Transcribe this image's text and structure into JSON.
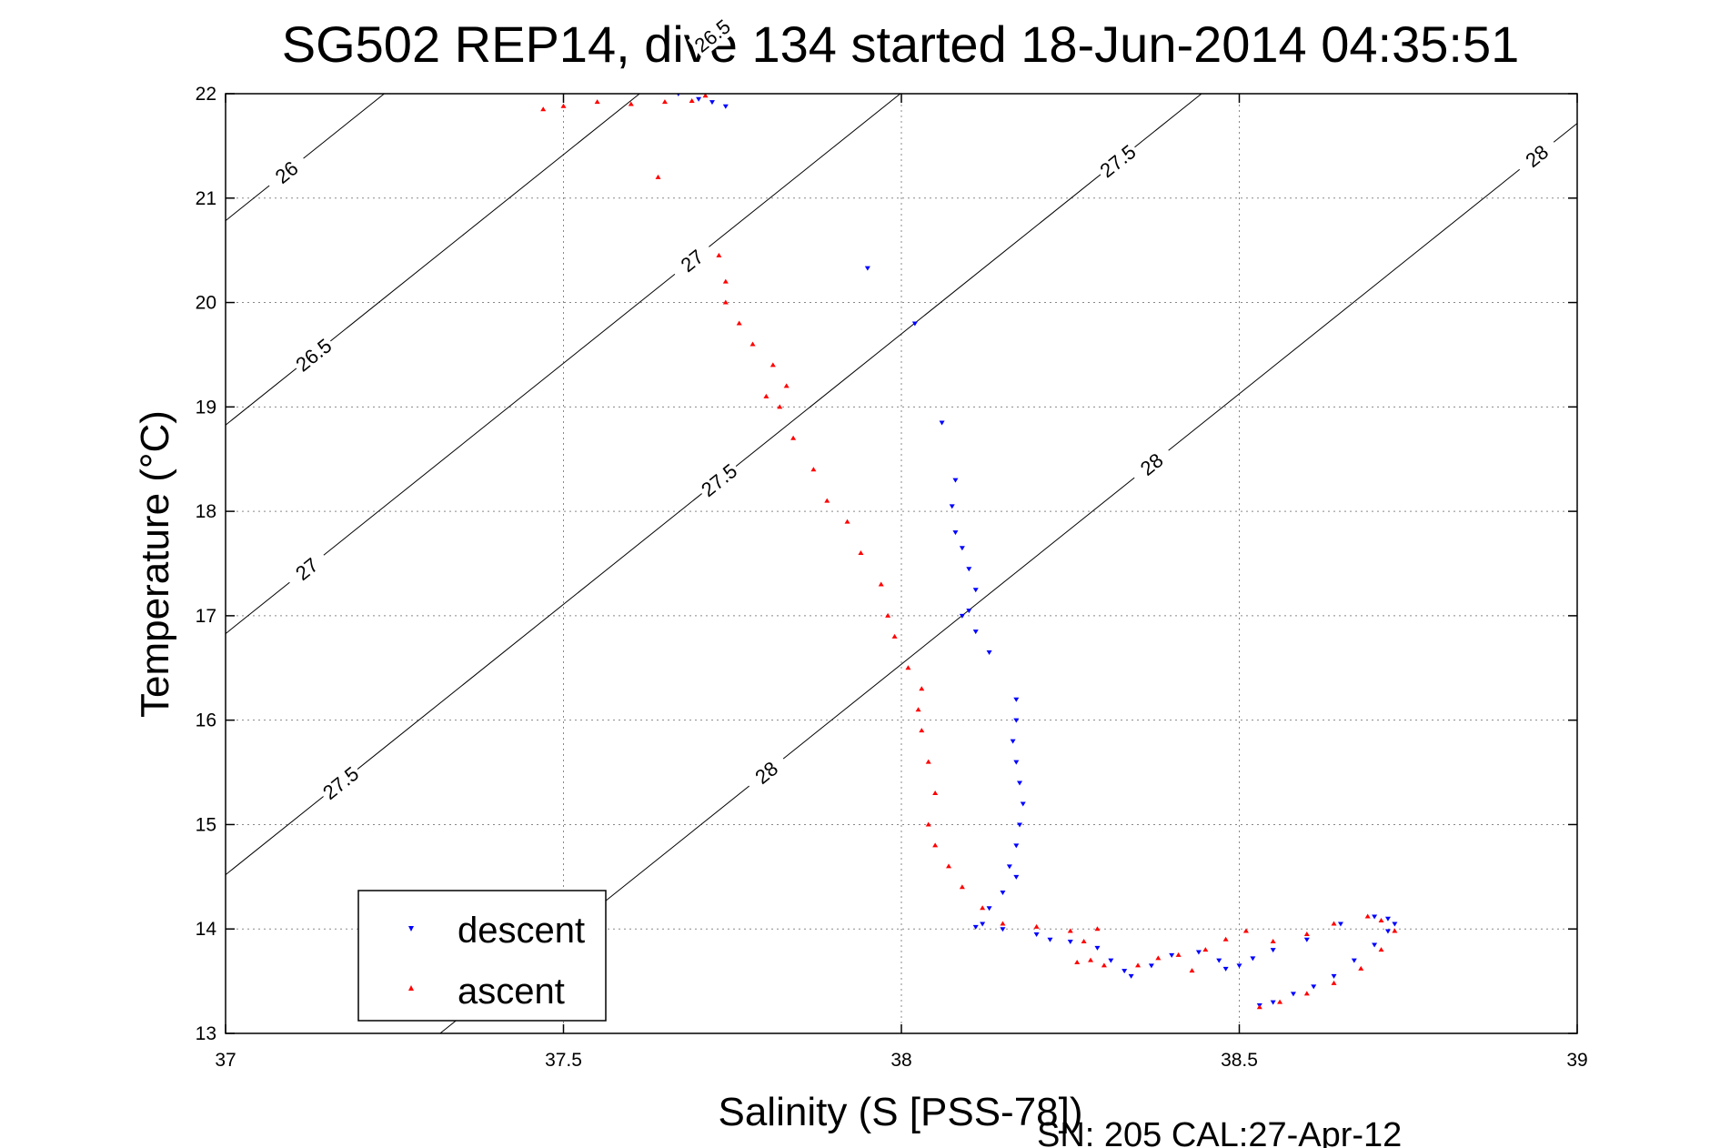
{
  "chart_data": {
    "type": "scatter",
    "title": "SG502 REP14, dive 134 started 18-Jun-2014 04:35:51",
    "xlabel": "Salinity (S [PSS-78])",
    "ylabel": "Temperature (°C)",
    "xlim": [
      37,
      39
    ],
    "ylim": [
      13,
      22
    ],
    "xticks": [
      "37",
      "37.5",
      "38",
      "38.5",
      "39"
    ],
    "yticks": [
      "13",
      "14",
      "15",
      "16",
      "17",
      "18",
      "19",
      "20",
      "21",
      "22"
    ],
    "grid": true,
    "legend_position": "bottom-left",
    "footer": "SN: 205  CAL:27-Apr-12",
    "density_contours": [
      {
        "level": "26",
        "label_points": [
          [
            37.09,
            21.25
          ]
        ]
      },
      {
        "level": "26.5",
        "label_points": [
          [
            37.13,
            19.5
          ],
          [
            37.72,
            21.15
          ]
        ]
      },
      {
        "level": "27",
        "label_points": [
          [
            37.12,
            17.45
          ],
          [
            37.69,
            19.28
          ],
          [
            38.28,
            21.0
          ]
        ]
      },
      {
        "level": "27.5",
        "label_points": [
          [
            37.17,
            15.4
          ],
          [
            37.73,
            17.4
          ],
          [
            38.32,
            19.2
          ],
          [
            38.91,
            20.8
          ]
        ]
      },
      {
        "level": "28",
        "label_points": [
          [
            37.8,
            15.5
          ],
          [
            38.37,
            17.35
          ],
          [
            38.94,
            19.0
          ]
        ]
      }
    ],
    "series": [
      {
        "name": "descent",
        "color": "#0000ff",
        "marker": "triangle-down",
        "points": [
          [
            37.67,
            22.0
          ],
          [
            37.7,
            21.95
          ],
          [
            37.72,
            21.92
          ],
          [
            37.74,
            21.88
          ],
          [
            37.95,
            20.33
          ],
          [
            38.02,
            19.8
          ],
          [
            38.06,
            18.85
          ],
          [
            38.08,
            18.3
          ],
          [
            38.075,
            18.05
          ],
          [
            38.08,
            17.8
          ],
          [
            38.09,
            17.65
          ],
          [
            38.1,
            17.45
          ],
          [
            38.11,
            17.25
          ],
          [
            38.1,
            17.05
          ],
          [
            38.09,
            17.0
          ],
          [
            38.11,
            16.85
          ],
          [
            38.13,
            16.65
          ],
          [
            38.17,
            16.2
          ],
          [
            38.17,
            16.0
          ],
          [
            38.165,
            15.8
          ],
          [
            38.17,
            15.6
          ],
          [
            38.175,
            15.4
          ],
          [
            38.18,
            15.2
          ],
          [
            38.175,
            15.0
          ],
          [
            38.17,
            14.8
          ],
          [
            38.16,
            14.6
          ],
          [
            38.17,
            14.5
          ],
          [
            38.15,
            14.35
          ],
          [
            38.13,
            14.2
          ],
          [
            38.12,
            14.05
          ],
          [
            38.11,
            14.02
          ],
          [
            38.15,
            14.0
          ],
          [
            38.2,
            13.95
          ],
          [
            38.22,
            13.9
          ],
          [
            38.25,
            13.88
          ],
          [
            38.29,
            13.82
          ],
          [
            38.31,
            13.7
          ],
          [
            38.33,
            13.6
          ],
          [
            38.34,
            13.55
          ],
          [
            38.37,
            13.65
          ],
          [
            38.4,
            13.75
          ],
          [
            38.44,
            13.78
          ],
          [
            38.47,
            13.7
          ],
          [
            38.48,
            13.62
          ],
          [
            38.5,
            13.65
          ],
          [
            38.52,
            13.72
          ],
          [
            38.55,
            13.8
          ],
          [
            38.6,
            13.9
          ],
          [
            38.65,
            14.05
          ],
          [
            38.7,
            14.12
          ],
          [
            38.72,
            14.1
          ],
          [
            38.73,
            14.05
          ],
          [
            38.72,
            13.98
          ],
          [
            38.7,
            13.85
          ],
          [
            38.67,
            13.7
          ],
          [
            38.64,
            13.55
          ],
          [
            38.61,
            13.45
          ],
          [
            38.58,
            13.38
          ],
          [
            38.55,
            13.3
          ],
          [
            38.53,
            13.27
          ]
        ]
      },
      {
        "name": "ascent",
        "color": "#ff0000",
        "marker": "triangle-up",
        "points": [
          [
            38.53,
            13.25
          ],
          [
            38.56,
            13.3
          ],
          [
            38.6,
            13.38
          ],
          [
            38.64,
            13.48
          ],
          [
            38.68,
            13.62
          ],
          [
            38.71,
            13.8
          ],
          [
            38.73,
            13.98
          ],
          [
            38.71,
            14.08
          ],
          [
            38.69,
            14.12
          ],
          [
            38.64,
            14.05
          ],
          [
            38.6,
            13.95
          ],
          [
            38.55,
            13.88
          ],
          [
            38.51,
            13.98
          ],
          [
            38.48,
            13.9
          ],
          [
            38.45,
            13.8
          ],
          [
            38.43,
            13.6
          ],
          [
            38.41,
            13.75
          ],
          [
            38.38,
            13.72
          ],
          [
            38.35,
            13.65
          ],
          [
            38.3,
            13.65
          ],
          [
            38.28,
            13.7
          ],
          [
            38.26,
            13.68
          ],
          [
            38.27,
            13.88
          ],
          [
            38.29,
            14.0
          ],
          [
            38.25,
            13.98
          ],
          [
            38.2,
            14.02
          ],
          [
            38.15,
            14.05
          ],
          [
            38.12,
            14.2
          ],
          [
            38.09,
            14.4
          ],
          [
            38.07,
            14.6
          ],
          [
            38.05,
            14.8
          ],
          [
            38.04,
            15.0
          ],
          [
            38.05,
            15.3
          ],
          [
            38.04,
            15.6
          ],
          [
            38.03,
            15.9
          ],
          [
            38.025,
            16.1
          ],
          [
            38.03,
            16.3
          ],
          [
            38.01,
            16.5
          ],
          [
            37.99,
            16.8
          ],
          [
            37.98,
            17.0
          ],
          [
            37.97,
            17.3
          ],
          [
            37.94,
            17.6
          ],
          [
            37.92,
            17.9
          ],
          [
            37.89,
            18.1
          ],
          [
            37.87,
            18.4
          ],
          [
            37.84,
            18.7
          ],
          [
            37.82,
            19.0
          ],
          [
            37.8,
            19.1
          ],
          [
            37.83,
            19.2
          ],
          [
            37.81,
            19.4
          ],
          [
            37.78,
            19.6
          ],
          [
            37.76,
            19.8
          ],
          [
            37.74,
            20.0
          ],
          [
            37.74,
            20.2
          ],
          [
            37.73,
            20.45
          ],
          [
            37.64,
            21.2
          ],
          [
            37.71,
            21.98
          ],
          [
            37.69,
            21.93
          ],
          [
            37.65,
            21.92
          ],
          [
            37.6,
            21.9
          ],
          [
            37.55,
            21.92
          ],
          [
            37.5,
            21.88
          ],
          [
            37.47,
            21.85
          ]
        ]
      }
    ]
  }
}
